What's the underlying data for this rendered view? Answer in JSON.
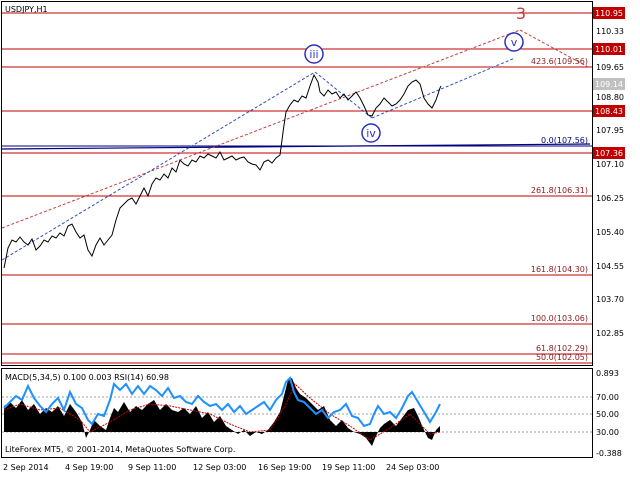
{
  "chart": {
    "symbol_title": "USDJPY,H1",
    "price_labels": {
      "p110_95": "110.95",
      "p110_33": "110.33",
      "p110_01": "110.01",
      "p109_65": "109.65",
      "p109_14": "109.14",
      "p108_80": "108.80",
      "p108_43": "108.43",
      "p107_95": "107.95",
      "p107_36": "107.36",
      "p107_10": "107.10",
      "p106_25": "106.25",
      "p105_40": "105.40",
      "p104_55": "104.55",
      "p103_70": "103.70",
      "p102_85": "102.85"
    },
    "fib_levels": {
      "f423": "423.6(109.56)",
      "f0": "0.0(107.56)",
      "f261": "261.8(106.31)",
      "f161": "161.8(104.30)",
      "f100": "100.0(103.06)",
      "f61": "61.8(102.29)",
      "f50": "50.0(102.05)"
    },
    "wave_labels": {
      "w3": "3",
      "wiii": "iii",
      "wiv": "iv",
      "wv": "v"
    }
  },
  "indicator": {
    "title": "MACD(5,34,5) 0.100 0.003 RSI(14) 60.98",
    "axis": {
      "a1": "0.893",
      "a2": "70.00",
      "a3": "50.00",
      "a4": "30.00",
      "a5": "-0.388"
    },
    "copyright": "LiteForex MT5, © 2001-2014, MetaQuotes Software Corp."
  },
  "time_axis": {
    "t1": "2 Sep 2014",
    "t2": "4 Sep 19:00",
    "t3": "9 Sep 11:00",
    "t4": "12 Sep 03:00",
    "t5": "16 Sep 19:00",
    "t6": "19 Sep 11:00",
    "t7": "24 Sep 03:00"
  },
  "colors": {
    "resistance_line": "#c00000",
    "support_line": "#000080",
    "wave_circle": "#3030c0",
    "wave_3": "#c04040",
    "channel_red": "#c04040",
    "channel_blue": "#3050c0",
    "fib_text": "#8b2020",
    "macd_fill": "#000000",
    "rsi_line": "#1e90ff"
  },
  "chart_data": {
    "type": "line",
    "instrument": "USDJPY",
    "timeframe": "H1",
    "ylim": [
      102.0,
      111.2
    ],
    "x_ticks": [
      "2 Sep 2014",
      "4 Sep 19:00",
      "9 Sep 11:00",
      "12 Sep 03:00",
      "16 Sep 19:00",
      "19 Sep 11:00",
      "24 Sep 03:00"
    ],
    "close_series": [
      104.9,
      105.3,
      105.5,
      105.6,
      105.8,
      105.9,
      105.7,
      105.4,
      105.6,
      105.3,
      105.9,
      106.5,
      106.6,
      106.7,
      107.0,
      107.3,
      107.1,
      107.2,
      107.3,
      107.5,
      107.4,
      107.3,
      107.4,
      107.3,
      107.5,
      108.0,
      108.8,
      109.1,
      109.4,
      109.0,
      109.2,
      108.8,
      108.9,
      108.6,
      108.7,
      108.4,
      108.6,
      108.9,
      109.1,
      109.3,
      108.9,
      108.6,
      108.6,
      108.9
    ],
    "horizontal_levels": [
      110.95,
      110.01,
      108.43,
      107.36
    ],
    "fibonacci": [
      {
        "ratio": 423.6,
        "price": 109.56
      },
      {
        "ratio": 0.0,
        "price": 107.56
      },
      {
        "ratio": 261.8,
        "price": 106.31
      },
      {
        "ratio": 161.8,
        "price": 104.3
      },
      {
        "ratio": 100.0,
        "price": 103.06
      },
      {
        "ratio": 61.8,
        "price": 102.29
      },
      {
        "ratio": 50.0,
        "price": 102.05
      }
    ],
    "indicator": {
      "macd_params": [
        5,
        34,
        5
      ],
      "macd_value": 0.1,
      "signal_value": 0.003,
      "rsi_period": 14,
      "rsi_value": 60.98,
      "macd_ylim": [
        -0.388,
        0.893
      ],
      "rsi_levels": [
        70.0,
        50.0,
        30.0
      ]
    }
  }
}
